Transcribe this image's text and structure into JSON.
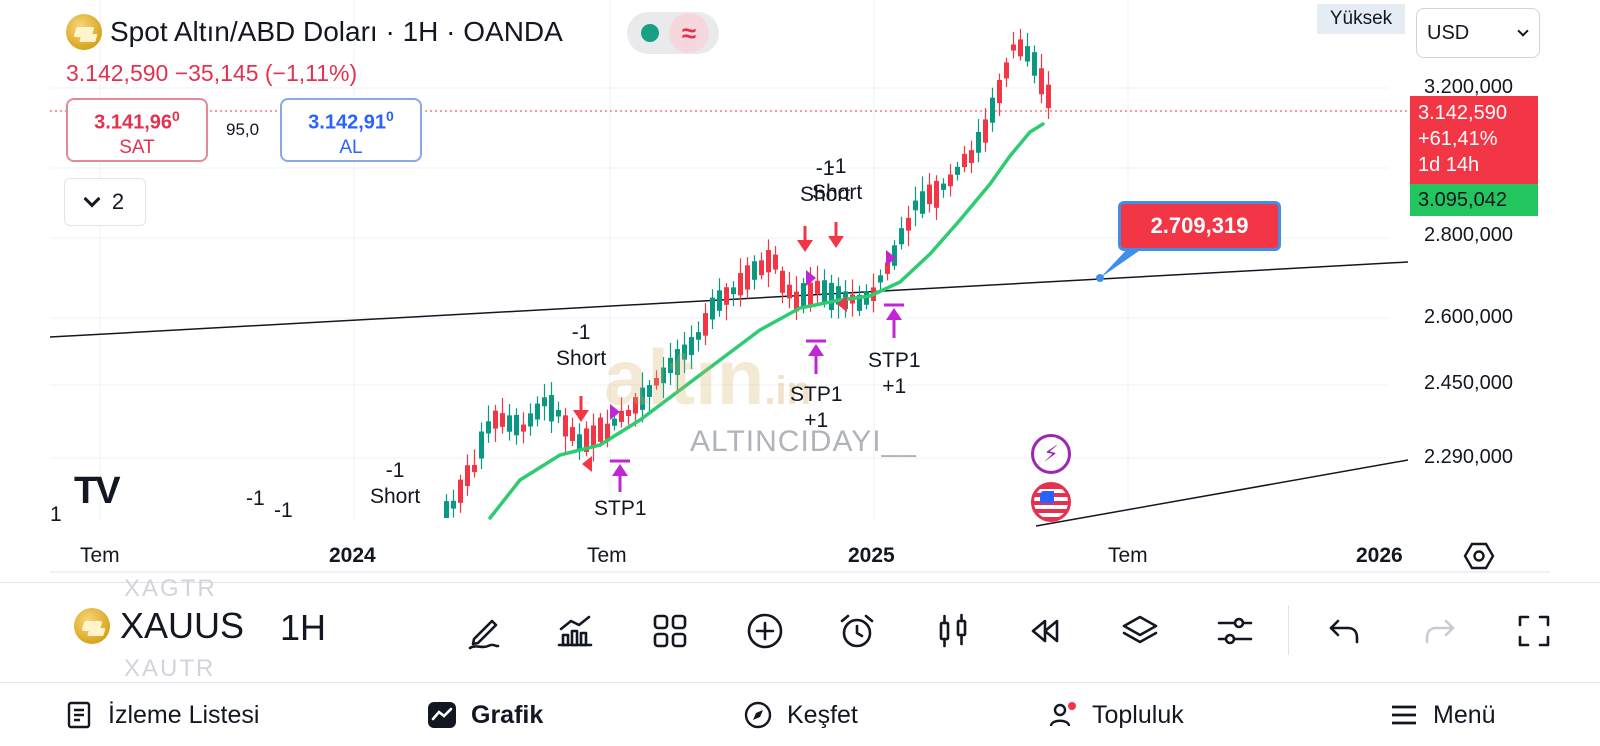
{
  "header": {
    "title": "Spot Altın/ABD Doları · 1H · OANDA",
    "change_line": "3.142,590  −35,145 (−1,11%)",
    "status_wave": "≈"
  },
  "trade": {
    "sell_price": "3.141,96",
    "sell_sup": "0",
    "sell_label": "SAT",
    "spread": "95,0",
    "buy_price": "3.142,91",
    "buy_sup": "0",
    "buy_label": "AL"
  },
  "collapse_count": "2",
  "scale_mode": "Yüksek",
  "currency": "USD",
  "price_axis": [
    "3.200,000",
    "2.800,000",
    "2.600,000",
    "2.450,000",
    "2.290,000"
  ],
  "current_price_tag": {
    "price": "3.142,590",
    "pct": "+61,41%",
    "countdown": "1d 14h"
  },
  "ema_tag": "3.095,042",
  "callout_value": "2.709,319",
  "time_axis": [
    "Tem",
    "2024",
    "Tem",
    "2025",
    "Tem",
    "2026"
  ],
  "watermark": {
    "brand": "altın",
    "suffix": ".in",
    "user": "ALTINCIDAYI__"
  },
  "signals": [
    {
      "id": "s1",
      "top": "-1",
      "bottom": "Short"
    },
    {
      "id": "s2",
      "top": "-1",
      "bottom": "Short"
    },
    {
      "id": "s3",
      "top": "-1",
      "bottom": "Short"
    },
    {
      "id": "s4",
      "top": "-1",
      "bottom": "Short"
    },
    {
      "id": "s5",
      "top": "STP1",
      "bottom": ""
    },
    {
      "id": "s6",
      "top": "STP1",
      "bottom": "+1"
    },
    {
      "id": "s7",
      "top": "STP1",
      "bottom": "+1"
    },
    {
      "id": "s8",
      "top": "-1",
      "bottom": ""
    },
    {
      "id": "s9",
      "top": "-1",
      "bottom": ""
    },
    {
      "id": "s10",
      "top": "1",
      "bottom": ""
    }
  ],
  "toolbar": {
    "symbol": "XAUUS",
    "symbol_prev": "XAGTR",
    "symbol_next": "XAUTR",
    "interval": "1H"
  },
  "nav": {
    "watchlist": "İzleme Listesi",
    "chart": "Grafik",
    "explore": "Keşfet",
    "community": "Topluluk",
    "menu": "Menü"
  },
  "colors": {
    "up": "#089981",
    "down": "#f23645",
    "ema": "#2ecc71",
    "buy": "#2962ff"
  }
}
